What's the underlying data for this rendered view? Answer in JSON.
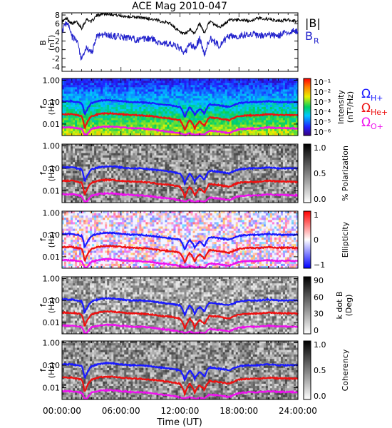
{
  "title": "ACE Mag 2010-047",
  "xlabel": "Time (UT)",
  "x_ticks": [
    "00:00:00",
    "06:00:00",
    "12:00:00",
    "18:00:00",
    "24:00:00"
  ],
  "freq_ticks": [
    "1.00",
    "0.10",
    "0.01"
  ],
  "legend": {
    "b_total": {
      "text": "|B|",
      "color": "#000000"
    },
    "b_r": {
      "text": "B",
      "sub": "R",
      "color": "#2222cc"
    },
    "gyro_h": {
      "text": "Ω",
      "sub": "H+",
      "color": "#1a1aff"
    },
    "gyro_he": {
      "text": "Ω",
      "sub": "He+",
      "color": "#ee1111"
    },
    "gyro_o": {
      "text": "Ω",
      "sub": "O+",
      "color": "#ee11ee"
    }
  },
  "panels": {
    "field": {
      "ylabel": "B",
      "yunit": "(nT)"
    },
    "intensity": {
      "ylabel": "f",
      "yunit": "(Hz)",
      "cb_label": "Intensity",
      "cb_unit": "(nT²/Hz)",
      "cb_ticks": [
        "10⁻¹",
        "10⁻²",
        "10⁻³",
        "10⁻⁴",
        "10⁻⁵",
        "10⁻⁶"
      ]
    },
    "polarization": {
      "ylabel": "f",
      "yunit": "(Hz)",
      "cb_label": "% Polarization",
      "cb_ticks": [
        "1.0",
        "0.5",
        "0.0"
      ]
    },
    "ellipticity": {
      "ylabel": "f",
      "yunit": "(Hz)",
      "cb_label": "Ellipticity",
      "cb_ticks": [
        "1",
        "0",
        "−1"
      ]
    },
    "kdotb": {
      "ylabel": "f",
      "yunit": "(Hz)",
      "cb_label": "k dot B",
      "cb_unit": "(Deg)",
      "cb_ticks": [
        "90",
        "60",
        "30",
        "0"
      ]
    },
    "coherency": {
      "ylabel": "f",
      "yunit": "(Hz)",
      "cb_label": "Coherency",
      "cb_ticks": [
        "1.0",
        "0.5",
        "0.0"
      ]
    }
  },
  "chart_data": {
    "type": "line",
    "title": "ACE Mag 2010-047",
    "xlabel": "Time (UT)",
    "xlim_hours": [
      0,
      24
    ],
    "field_panel": {
      "ylabel": "B (nT)",
      "ylim": [
        -5,
        8.5
      ],
      "y_ticks": [
        8,
        6,
        4,
        2,
        0,
        -2,
        -4
      ],
      "hours": [
        0,
        0.5,
        1,
        1.5,
        2,
        2.5,
        3,
        3.5,
        4,
        5,
        6,
        7,
        8,
        9,
        10,
        11,
        12,
        12.5,
        13,
        13.5,
        14,
        14.5,
        15,
        16,
        16.5,
        17,
        18,
        19,
        20,
        21,
        22,
        23,
        24
      ],
      "series": [
        {
          "name": "|B|",
          "color": "#000000",
          "values": [
            6.5,
            7.2,
            6.0,
            6.4,
            5.0,
            7.0,
            6.5,
            7.8,
            8.3,
            8.2,
            7.8,
            7.6,
            7.4,
            7.1,
            6.6,
            6.1,
            4.0,
            3.5,
            4.6,
            3.8,
            6.0,
            3.8,
            6.5,
            5.2,
            5.8,
            6.8,
            7.0,
            6.6,
            7.3,
            7.0,
            6.6,
            6.9,
            6.5
          ]
        },
        {
          "name": "B_R",
          "color": "#2222cc",
          "values": [
            4.5,
            6.5,
            3.0,
            2.0,
            -2.5,
            0.5,
            -1.0,
            3.0,
            3.6,
            3.2,
            3.0,
            2.6,
            2.2,
            2.6,
            1.6,
            1.3,
            0.3,
            -0.8,
            1.4,
            0.2,
            2.6,
            -1.2,
            2.6,
            1.0,
            2.2,
            3.1,
            3.1,
            3.7,
            3.2,
            3.4,
            3.2,
            4.0,
            4.5
          ]
        }
      ]
    },
    "spectrogram_panels": {
      "ylabel": "f (Hz)",
      "yscale": "log",
      "ylim": [
        0.003,
        1.2
      ],
      "y_ticks": [
        1.0,
        0.1,
        0.01
      ],
      "names": [
        "Intensity",
        "% Polarization",
        "Ellipticity",
        "k dot B",
        "Coherency"
      ]
    },
    "gyrofrequency_lines": {
      "hours": [
        0,
        1,
        2,
        2.3,
        2.6,
        3,
        4,
        5,
        6,
        7,
        8,
        9,
        10,
        11,
        12,
        12.5,
        13,
        13.5,
        14,
        14.5,
        15,
        16,
        17,
        18,
        19,
        20,
        21,
        22,
        23,
        24
      ],
      "series": [
        {
          "name": "ΩH+",
          "color": "#1a1aff",
          "values": [
            0.11,
            0.11,
            0.09,
            0.025,
            0.05,
            0.09,
            0.12,
            0.125,
            0.11,
            0.1,
            0.1,
            0.09,
            0.08,
            0.07,
            0.06,
            0.02,
            0.06,
            0.025,
            0.05,
            0.03,
            0.08,
            0.07,
            0.06,
            0.09,
            0.1,
            0.1,
            0.11,
            0.1,
            0.1,
            0.1
          ]
        },
        {
          "name": "ΩHe+",
          "color": "#ee1111",
          "values": [
            0.028,
            0.028,
            0.023,
            0.006,
            0.013,
            0.023,
            0.03,
            0.031,
            0.028,
            0.026,
            0.025,
            0.023,
            0.02,
            0.018,
            0.015,
            0.005,
            0.015,
            0.006,
            0.013,
            0.008,
            0.02,
            0.018,
            0.015,
            0.023,
            0.025,
            0.025,
            0.028,
            0.026,
            0.026,
            0.025
          ]
        },
        {
          "name": "ΩO+",
          "color": "#ee11ee",
          "values": [
            0.007,
            0.007,
            0.006,
            0.0032,
            0.0035,
            0.006,
            0.0075,
            0.0078,
            0.007,
            0.0065,
            0.0063,
            0.0058,
            0.005,
            0.0045,
            0.0038,
            0.0032,
            0.0038,
            0.0032,
            0.0035,
            0.0032,
            0.005,
            0.0045,
            0.0038,
            0.0058,
            0.0063,
            0.0063,
            0.007,
            0.0065,
            0.0065,
            0.0063
          ]
        }
      ]
    }
  }
}
